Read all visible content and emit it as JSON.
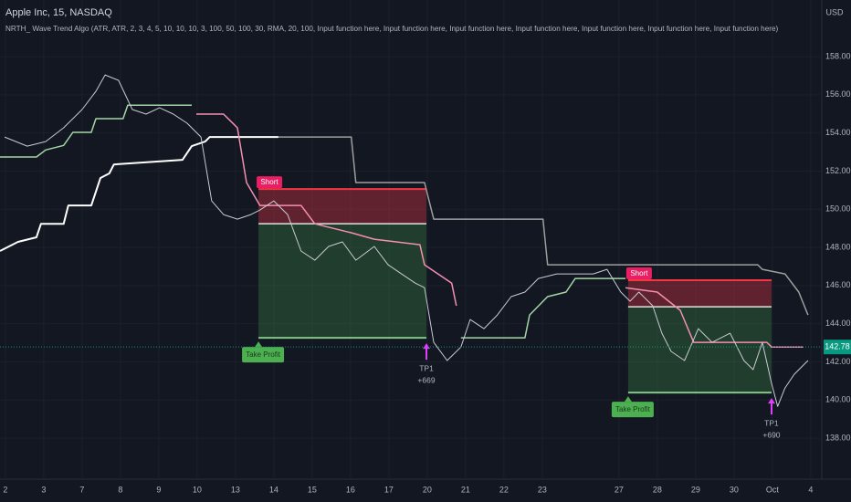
{
  "chart_data": {
    "type": "price-chart",
    "title": "Apple Inc, 15, NASDAQ",
    "subtitle": "NRTH_ Wave Trend Algo (ATR, ATR, 2, 3, 4, 5, 10, 10, 10, 3, 100, 50, 100, 30, RMA, 20, 100, Input function here, Input function here, Input function here, Input function here, Input function here, Input function here, Input function here)",
    "currency": "USD",
    "xlim": [
      -0.14,
      21.29
    ],
    "ylim": [
      135.85,
      160.97
    ],
    "xticks": [
      {
        "value": 0,
        "label": "2"
      },
      {
        "value": 1,
        "label": "3"
      },
      {
        "value": 2,
        "label": "7"
      },
      {
        "value": 3,
        "label": "8"
      },
      {
        "value": 4,
        "label": "9"
      },
      {
        "value": 5,
        "label": "10"
      },
      {
        "value": 6,
        "label": "13"
      },
      {
        "value": 7,
        "label": "14"
      },
      {
        "value": 8,
        "label": "15"
      },
      {
        "value": 9,
        "label": "16"
      },
      {
        "value": 10,
        "label": "17"
      },
      {
        "value": 11,
        "label": "20"
      },
      {
        "value": 12,
        "label": "21"
      },
      {
        "value": 13,
        "label": "22"
      },
      {
        "value": 14,
        "label": "23"
      },
      {
        "value": 16,
        "label": "27"
      },
      {
        "value": 17,
        "label": "28"
      },
      {
        "value": 18,
        "label": "29"
      },
      {
        "value": 19,
        "label": "30"
      },
      {
        "value": 20,
        "label": "Oct"
      },
      {
        "value": 21,
        "label": "4"
      }
    ],
    "yticks": [
      {
        "value": 138,
        "label": "138.00"
      },
      {
        "value": 140,
        "label": "140.00"
      },
      {
        "value": 142,
        "label": "142.00"
      },
      {
        "value": 144,
        "label": "144.00"
      },
      {
        "value": 146,
        "label": "146.00"
      },
      {
        "value": 148,
        "label": "148.00"
      },
      {
        "value": 150,
        "label": "150.00"
      },
      {
        "value": 152,
        "label": "152.00"
      },
      {
        "value": 154,
        "label": "154.00"
      },
      {
        "value": 156,
        "label": "156.00"
      },
      {
        "value": 158,
        "label": "158.00"
      }
    ],
    "last_price": 142.78,
    "last_price_color": "#089981",
    "series": [
      {
        "color": "#ffffff",
        "width": 2,
        "x": [
          -0.14,
          0.33,
          0.81,
          0.93,
          1.52,
          1.64,
          2.24,
          2.48,
          2.71,
          2.83,
          4.62,
          4.86,
          5.21,
          5.33,
          7.12
        ],
        "values": [
          147.81,
          148.29,
          148.53,
          149.24,
          149.24,
          150.2,
          150.2,
          151.64,
          151.88,
          152.35,
          152.59,
          153.31,
          153.55,
          153.79,
          153.79
        ]
      },
      {
        "color": "#9e9e9e",
        "width": 1.5,
        "x": [
          7.12,
          9.02,
          9.14,
          10.93,
          11.17,
          14.02,
          14.14,
          19.62,
          19.74,
          20.33,
          20.69,
          20.93
        ],
        "values": [
          153.79,
          153.79,
          151.4,
          151.4,
          149.48,
          149.48,
          147.09,
          147.09,
          146.85,
          146.61,
          145.66,
          144.46
        ]
      },
      {
        "color": "#a5d6a7",
        "width": 1.5,
        "x": [
          -0.14,
          0.81,
          1.05,
          1.52,
          1.76,
          2.24,
          2.36,
          3.07,
          3.19,
          4.86,
          5,
          11.88,
          13.55,
          13.67,
          14.14,
          14.62,
          14.86,
          16.17
        ],
        "values": [
          152.74,
          152.74,
          153.11,
          153.35,
          154.03,
          154.03,
          154.75,
          154.75,
          155.46,
          155.46,
          null,
          143.26,
          143.26,
          144.46,
          145.42,
          145.66,
          146.37,
          146.37
        ]
      },
      {
        "color": "#f48fb1",
        "width": 1.5,
        "x": [
          4.98,
          5.69,
          6.05,
          6.29,
          6.64,
          7.71,
          8.07,
          9.02,
          9.62,
          10.81,
          10.93,
          11.64,
          11.76,
          14,
          16.17,
          17,
          17.6,
          17.95,
          19.86,
          19.98,
          20.81
        ],
        "values": [
          154.99,
          154.99,
          154.27,
          151.4,
          150.2,
          150.2,
          149.24,
          148.77,
          148.43,
          148.14,
          147.09,
          146.13,
          144.94,
          null,
          145.89,
          145.66,
          144.7,
          143.02,
          143.02,
          142.78,
          142.78
        ]
      },
      {
        "color": "#c8cbd3",
        "width": 1,
        "x": [
          -0.02,
          0.57,
          1.05,
          1.52,
          2,
          2.36,
          2.6,
          2.95,
          3.31,
          3.67,
          4.02,
          4.38,
          4.74,
          5.1,
          5.38,
          5.69,
          6.05,
          6.4,
          6.64,
          7,
          7.36,
          7.71,
          8.07,
          8.43,
          8.79,
          9.14,
          9.62,
          9.98,
          10.33,
          10.69,
          10.93,
          11.17,
          11.52,
          11.88,
          12.12,
          12.48,
          12.83,
          13.19,
          13.55,
          13.9,
          14.38,
          14.86,
          15.33,
          15.69,
          16.05,
          16.29,
          16.52,
          16.88,
          17.12,
          17.36,
          17.71,
          18.07,
          18.43,
          18.9,
          19.26,
          19.5,
          19.74,
          19.98,
          20.14,
          20.33,
          20.57,
          20.93
        ],
        "values": [
          153.79,
          153.31,
          153.55,
          154.27,
          155.23,
          156.18,
          157.04,
          156.76,
          155.23,
          154.99,
          155.32,
          154.99,
          154.51,
          153.79,
          150.44,
          149.72,
          149.48,
          149.72,
          149.96,
          150.44,
          149.72,
          147.81,
          147.33,
          148.05,
          148.29,
          147.33,
          148.05,
          147.09,
          146.61,
          146.13,
          145.89,
          143.02,
          142.07,
          142.78,
          144.22,
          143.74,
          144.46,
          145.42,
          145.66,
          146.37,
          146.61,
          146.61,
          146.61,
          146.85,
          145.66,
          145.18,
          145.66,
          144.94,
          143.5,
          142.55,
          142.07,
          143.74,
          143.02,
          143.5,
          142.07,
          141.59,
          143.02,
          140.87,
          139.67,
          140.63,
          141.35,
          142.07
        ]
      }
    ],
    "trades": [
      {
        "x": [
          6.6,
          10.98
        ],
        "entry": 149.24,
        "stop": 151.06,
        "target": 143.26,
        "label": "Short",
        "tp_label": "Take Profit",
        "exit_label": "TP1",
        "pnl": "+669"
      },
      {
        "x": [
          16.24,
          19.98
        ],
        "entry": 144.89,
        "stop": 146.28,
        "target": 140.39,
        "label": "Short",
        "tp_label": "Take Profit",
        "exit_label": "TP1",
        "pnl": "+690"
      }
    ]
  }
}
